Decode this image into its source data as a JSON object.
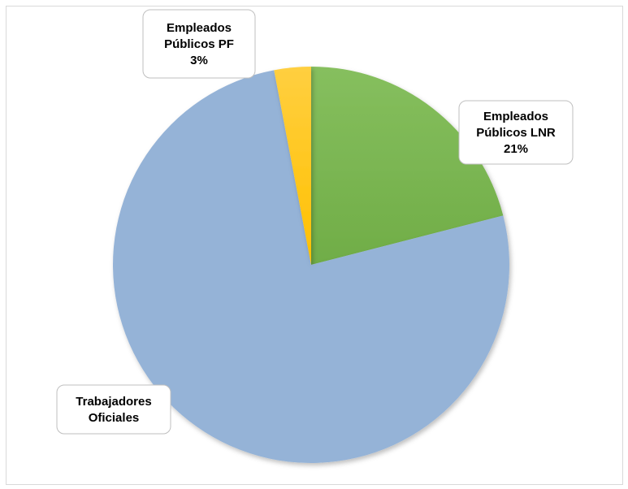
{
  "chart_data": {
    "type": "pie",
    "start_angle_deg": 0,
    "direction": "clockwise",
    "slices": [
      {
        "key": "lnr",
        "label_lines": [
          "Empleados",
          "Públicos LNR",
          "21%"
        ],
        "value": 21,
        "color": "#70ad47",
        "color_light": "#86bf5e"
      },
      {
        "key": "to",
        "label_lines": [
          "Trabajadores",
          "Oficiales"
        ],
        "value": 76,
        "color": "#95b3d7",
        "color_light": "#95b3d7"
      },
      {
        "key": "pf",
        "label_lines": [
          "Empleados",
          "Públicos PF",
          "3%"
        ],
        "value": 3,
        "color": "#ffc000",
        "color_light": "#ffcf40"
      }
    ]
  }
}
